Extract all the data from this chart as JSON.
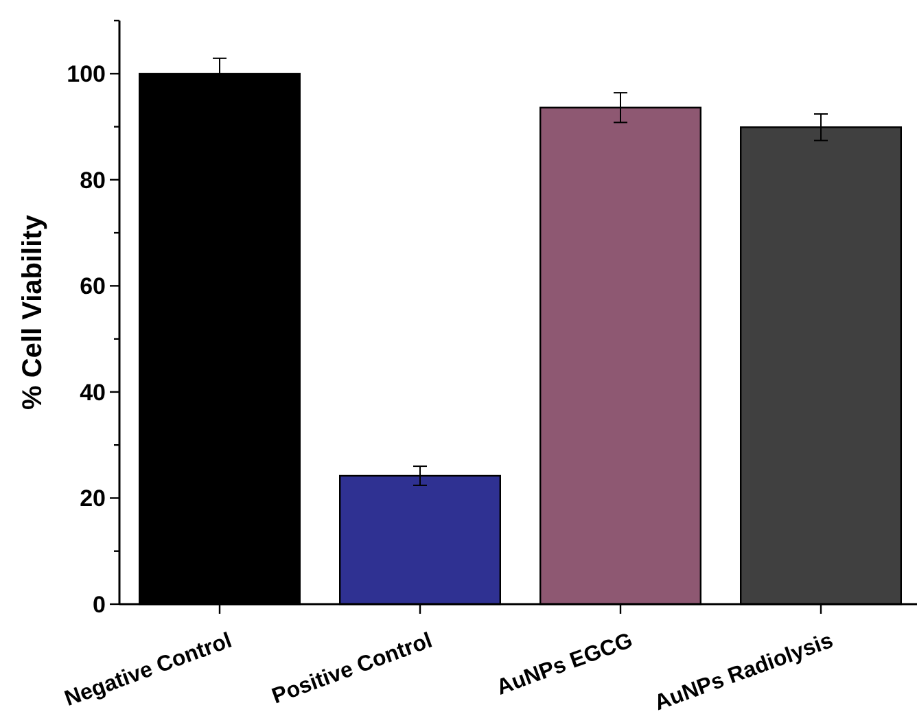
{
  "chart_data": {
    "type": "bar",
    "ylabel": "% Cell Viability",
    "categories": [
      "Negative Control",
      "Positive Control",
      "AuNPs EGCG",
      "AuNPs Radiolysis"
    ],
    "values": [
      100,
      24.2,
      93.6,
      89.9
    ],
    "errors": [
      2.9,
      1.8,
      2.8,
      2.5
    ],
    "colors": [
      "#000000",
      "#2f3192",
      "#8e5872",
      "#404040"
    ],
    "ylim": [
      0,
      110
    ],
    "yticks": [
      0,
      {
        "value": 10,
        "label": null
      },
      20,
      {
        "value": 30,
        "label": null
      },
      40,
      {
        "value": 50,
        "label": null
      },
      60,
      {
        "value": 70,
        "label": null
      },
      80,
      {
        "value": 90,
        "label": null
      },
      100,
      {
        "value": 110,
        "label": null
      }
    ],
    "grid": false
  }
}
